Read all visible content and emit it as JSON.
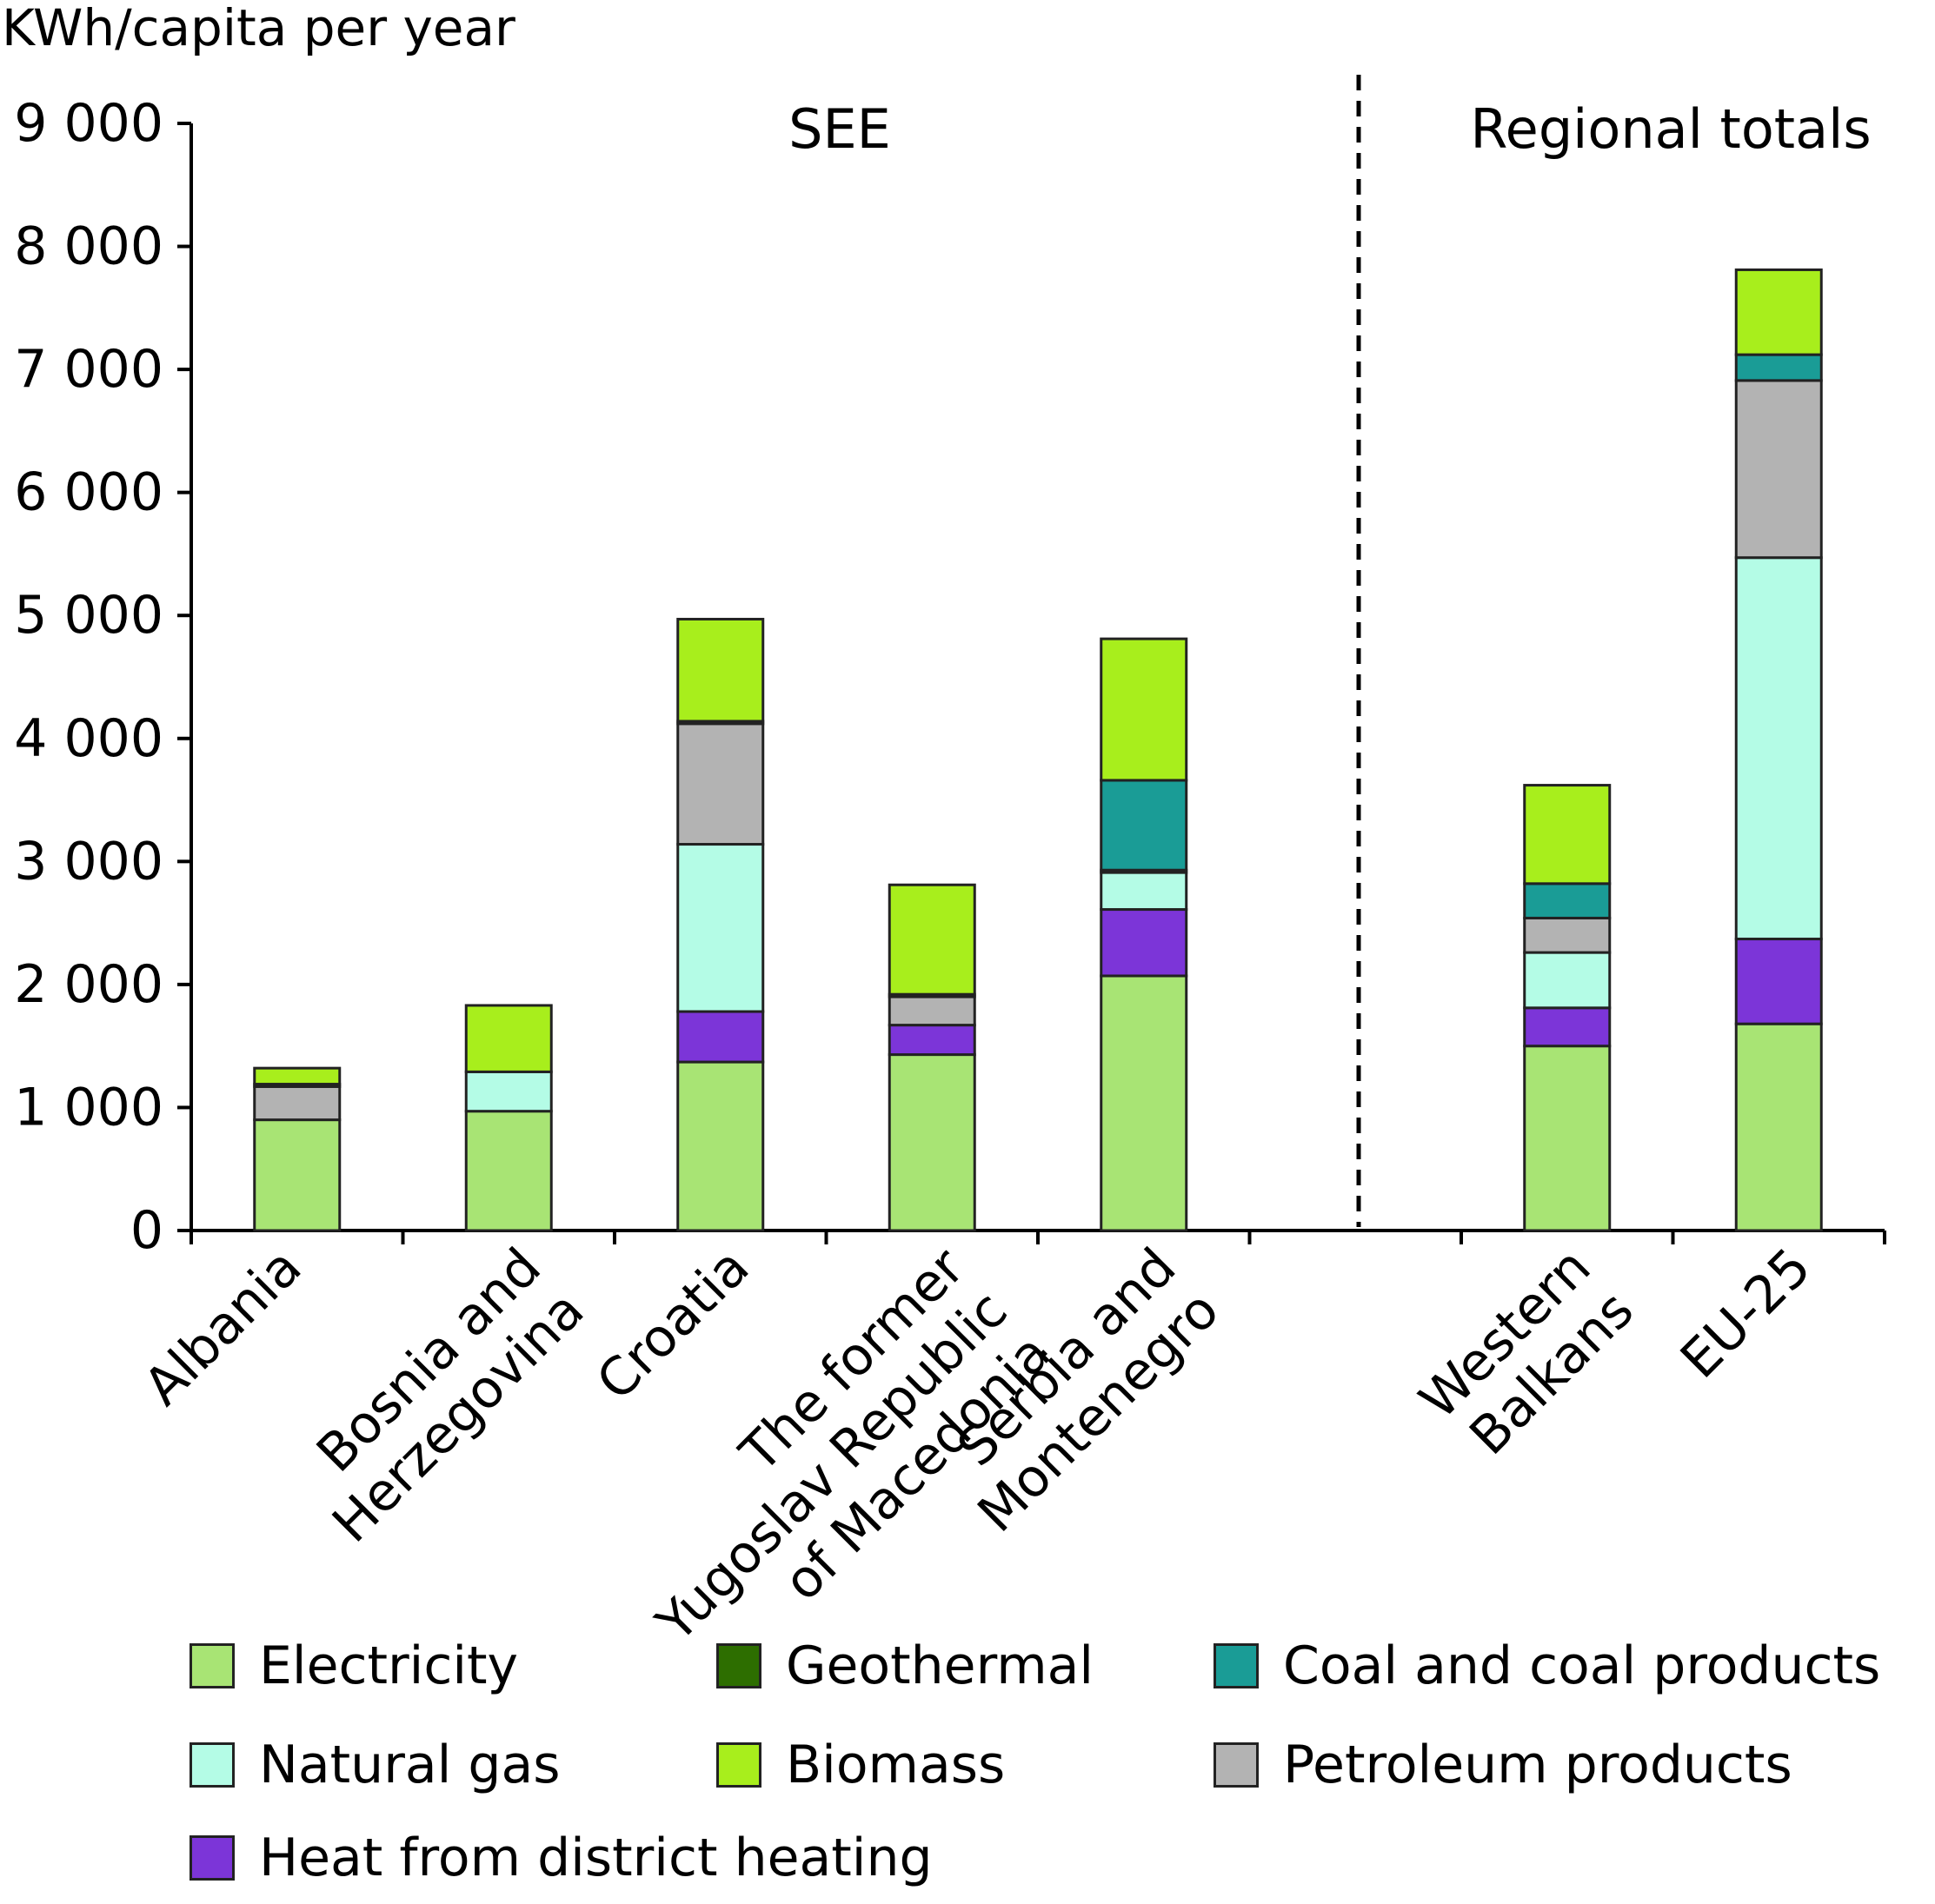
{
  "chart_data": {
    "type": "bar",
    "stacked": true,
    "ylabel": "KWh/capita per year",
    "ylim": [
      0,
      9000
    ],
    "yticks": [
      0,
      1000,
      2000,
      3000,
      4000,
      5000,
      6000,
      7000,
      8000,
      9000
    ],
    "ytick_labels": [
      "0",
      "1 000",
      "2 000",
      "3 000",
      "4 000",
      "5 000",
      "6 000",
      "7 000",
      "8 000",
      "9 000"
    ],
    "group_labels": [
      "SEE",
      "Regional totals"
    ],
    "categories": [
      "Albania",
      "Bosnia and Herzegovina",
      "Croatia",
      "The former Yugoslav Republic of Macedonia",
      "Serbia and Montenegro",
      "Western Balkans",
      "EU-25"
    ],
    "category_lines": [
      [
        "Albania"
      ],
      [
        "Bosnia and",
        "Herzegovina"
      ],
      [
        "Croatia"
      ],
      [
        "The former",
        "Yugoslav Republic",
        "of Macedonia"
      ],
      [
        "Serbia and",
        "Montenegro"
      ],
      [
        "Western",
        "Balkans"
      ],
      [
        "EU-25"
      ]
    ],
    "series": [
      {
        "name": "Electricity",
        "color": "#a8e474",
        "values": [
          900,
          970,
          1370,
          1430,
          2070,
          1500,
          1680
        ]
      },
      {
        "name": "Heat from district heating",
        "color": "#7c35d8",
        "values": [
          0,
          0,
          410,
          240,
          540,
          310,
          690
        ]
      },
      {
        "name": "Natural gas",
        "color": "#b4fce6",
        "values": [
          0,
          320,
          1360,
          0,
          300,
          450,
          3100
        ]
      },
      {
        "name": "Petroleum products",
        "color": "#b3b3b3",
        "values": [
          270,
          0,
          980,
          230,
          20,
          280,
          1440
        ]
      },
      {
        "name": "Coal and coal products",
        "color": "#1a9c96",
        "values": [
          0,
          0,
          0,
          0,
          730,
          280,
          210
        ]
      },
      {
        "name": "Geothermal",
        "color": "#2d6e00",
        "values": [
          20,
          0,
          20,
          20,
          0,
          0,
          0
        ]
      },
      {
        "name": "Biomass",
        "color": "#a8ee1c",
        "values": [
          130,
          540,
          830,
          890,
          1150,
          800,
          690
        ]
      }
    ],
    "legend_order": [
      "Electricity",
      "Geothermal",
      "Coal and coal products",
      "Natural gas",
      "Biomass",
      "Petroleum products",
      "Heat from district heating"
    ],
    "legend_position": "bottom",
    "grid": false
  }
}
